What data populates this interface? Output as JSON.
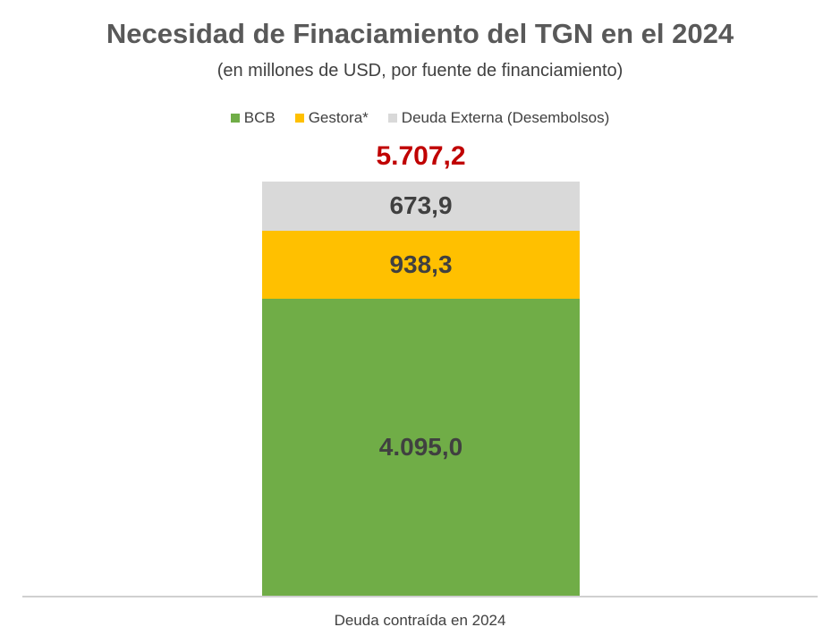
{
  "chart_data": {
    "type": "bar",
    "stacked": true,
    "title": "Necesidad de Finaciamiento del TGN en el 2024",
    "subtitle": "(en millones de USD, por fuente de financiamiento)",
    "categories": [
      "Deuda contraída en 2024"
    ],
    "series": [
      {
        "name": "BCB",
        "values": [
          4095.0
        ],
        "value_label": "4.095,0",
        "color": "#70ad47"
      },
      {
        "name": "Gestora*",
        "values": [
          938.3
        ],
        "value_label": "938,3",
        "color": "#ffc000"
      },
      {
        "name": "Deuda Externa (Desembolsos)",
        "values": [
          673.9
        ],
        "value_label": "673,9",
        "color": "#d9d9d9"
      }
    ],
    "total": 5707.2,
    "total_label": "5.707,2",
    "total_color": "#c00000",
    "legend_position": "top",
    "grid": false
  }
}
